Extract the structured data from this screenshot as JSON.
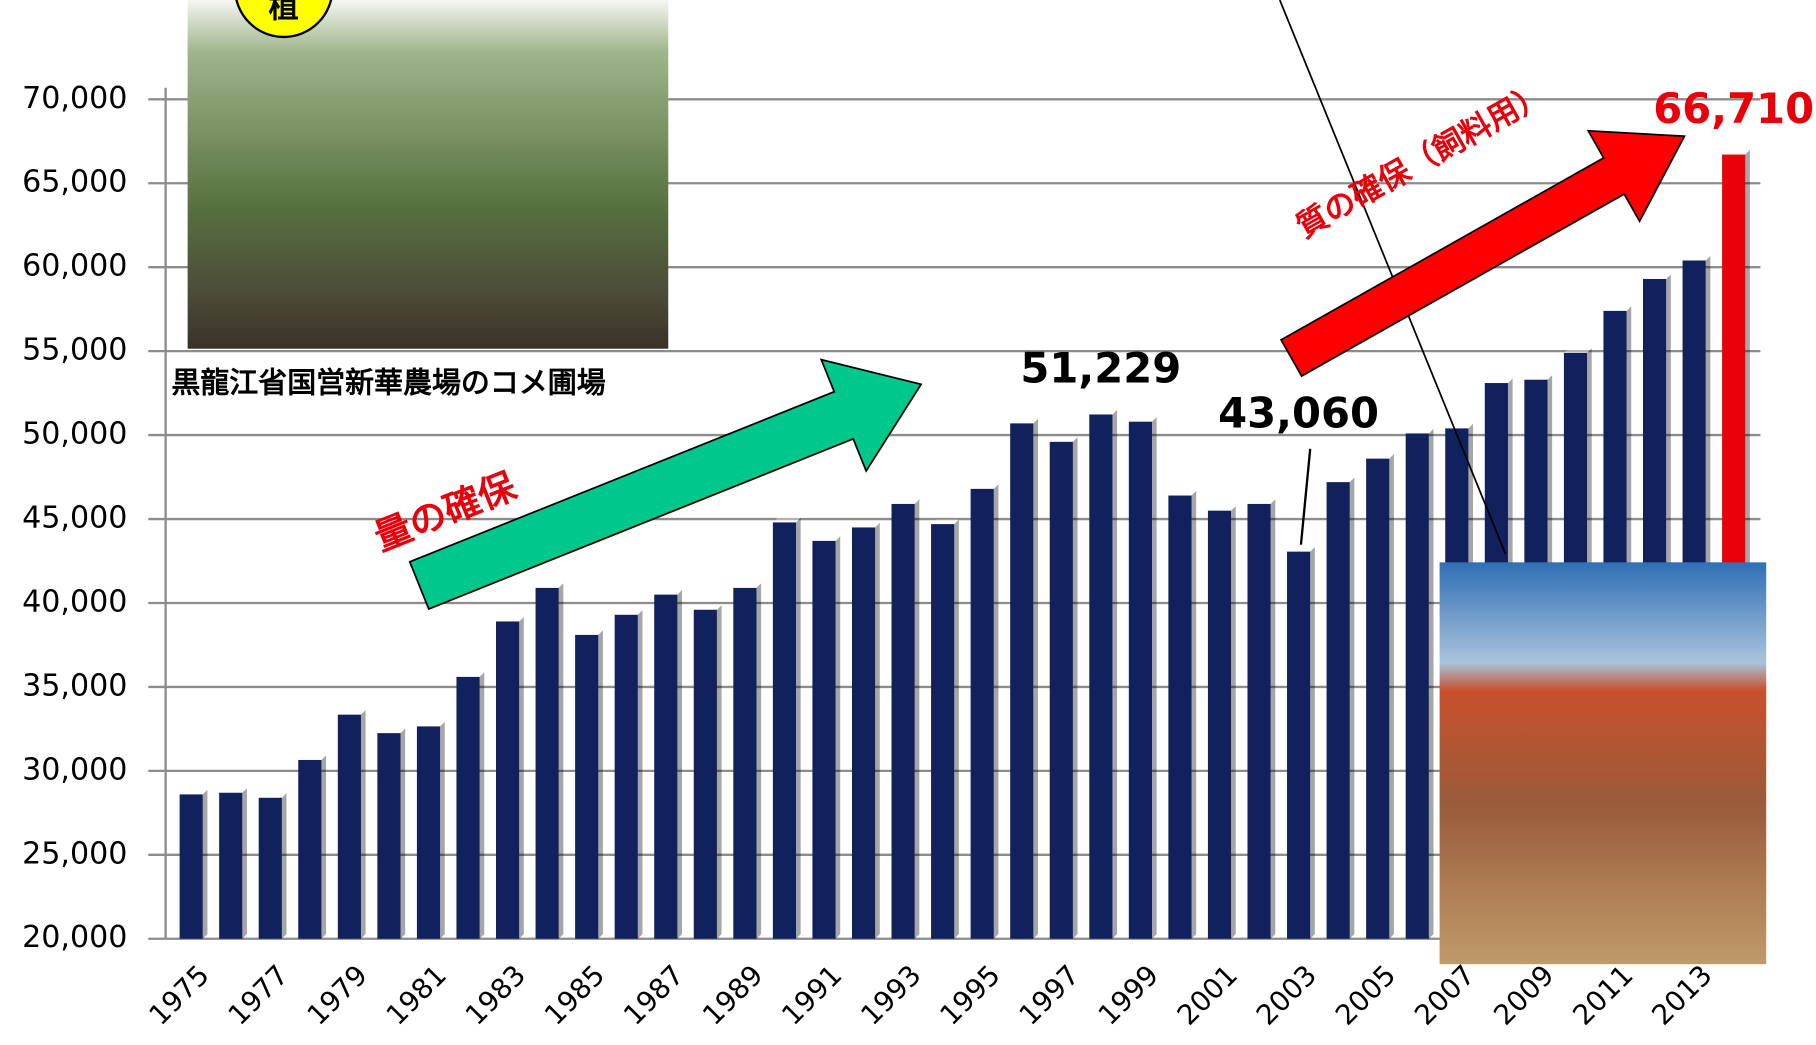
{
  "chart_data": {
    "type": "bar",
    "categories": [
      "1975",
      null,
      "1977",
      null,
      "1979",
      null,
      "1981",
      null,
      "1983",
      null,
      "1985",
      null,
      "1987",
      null,
      "1989",
      null,
      "1991",
      null,
      "1993",
      null,
      "1995",
      null,
      "1997",
      null,
      "1999",
      null,
      "2001",
      null,
      "2003",
      null,
      "2005",
      null,
      "2007",
      null,
      "2009",
      null,
      "2011",
      null,
      "2013",
      null
    ],
    "values": [
      28600,
      28700,
      28400,
      30650,
      33350,
      32250,
      32650,
      35600,
      38900,
      40900,
      38100,
      39300,
      40500,
      39600,
      40900,
      44800,
      43700,
      44500,
      45900,
      44700,
      46800,
      50700,
      49600,
      51229,
      50800,
      46400,
      45500,
      45900,
      43060,
      47200,
      48600,
      50100,
      50400,
      53100,
      53300,
      54900,
      57400,
      59300,
      60400,
      66710
    ],
    "value_labels": [
      null,
      null,
      null,
      null,
      null,
      null,
      null,
      null,
      null,
      null,
      null,
      null,
      null,
      null,
      null,
      null,
      null,
      null,
      null,
      null,
      null,
      null,
      null,
      "51,229",
      null,
      null,
      null,
      null,
      "43,060",
      null,
      null,
      null,
      null,
      null,
      null,
      null,
      null,
      null,
      null,
      "66,710"
    ],
    "colors": [
      "#10215e",
      "#10215e",
      "#10215e",
      "#10215e",
      "#10215e",
      "#10215e",
      "#10215e",
      "#10215e",
      "#10215e",
      "#10215e",
      "#10215e",
      "#10215e",
      "#10215e",
      "#10215e",
      "#10215e",
      "#10215e",
      "#10215e",
      "#10215e",
      "#10215e",
      "#10215e",
      "#10215e",
      "#10215e",
      "#10215e",
      "#10215e",
      "#10215e",
      "#10215e",
      "#10215e",
      "#10215e",
      "#10215e",
      "#10215e",
      "#10215e",
      "#10215e",
      "#10215e",
      "#10215e",
      "#10215e",
      "#10215e",
      "#10215e",
      "#10215e",
      "#10215e",
      "#e8000b"
    ],
    "ylim": [
      20000,
      70000
    ],
    "yticks": [
      {
        "value": 20000,
        "label": "20,000"
      },
      {
        "value": 25000,
        "label": "25,000"
      },
      {
        "value": 30000,
        "label": "30,000"
      },
      {
        "value": 35000,
        "label": "35,000"
      },
      {
        "value": 40000,
        "label": "40,000"
      },
      {
        "value": 45000,
        "label": "45,000"
      },
      {
        "value": 50000,
        "label": "50,000"
      },
      {
        "value": 55000,
        "label": "55,000"
      },
      {
        "value": 60000,
        "label": "60,000"
      },
      {
        "value": 65000,
        "label": "65,000"
      },
      {
        "value": 70000,
        "label": "70,000"
      }
    ],
    "grid": true,
    "annotations": {
      "quantity": "量の確保",
      "quality": "質の確保（飼料用）",
      "photo_caption": "黒龍江省国営新華農場のコメ圃場",
      "badge": "植"
    }
  }
}
